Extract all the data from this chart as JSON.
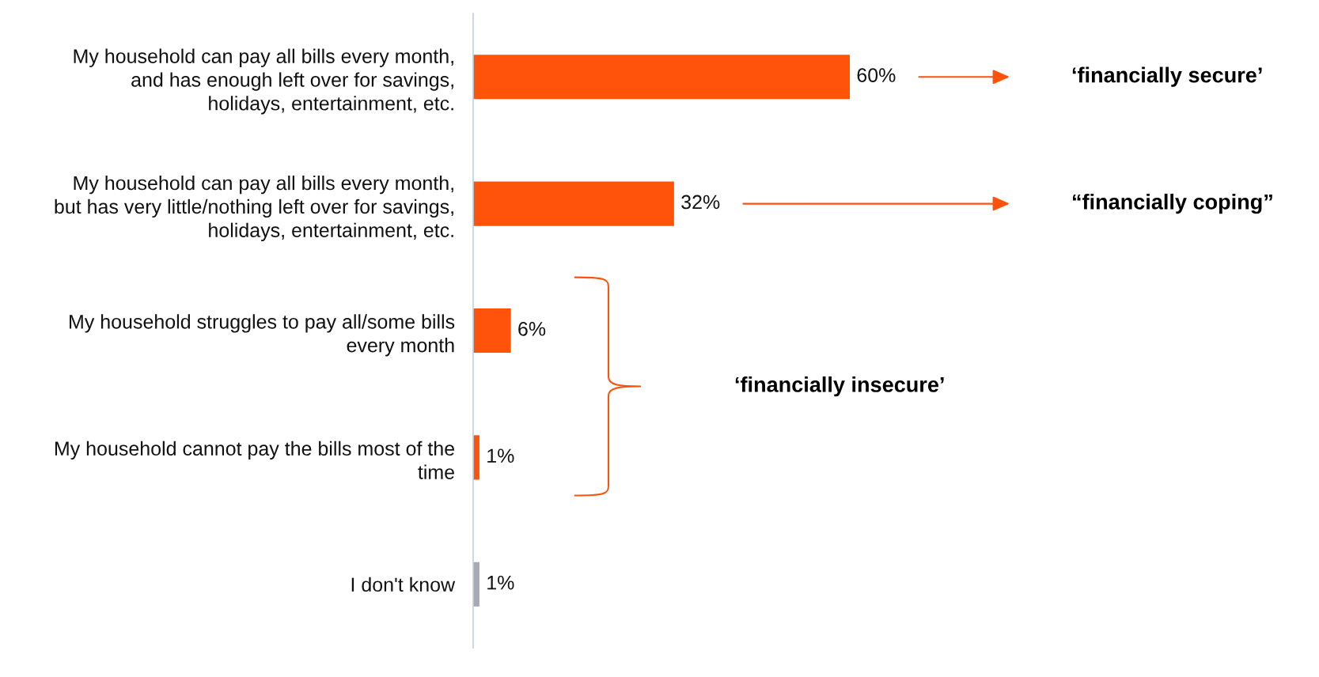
{
  "chart_data": {
    "type": "bar",
    "orientation": "horizontal",
    "categories": [
      "My household can pay all bills every month,\nand has enough left over for savings,\nholidays, entertainment, etc.",
      "My household can pay all bills every month,\nbut has very little/nothing left over for savings,\nholidays, entertainment, etc.",
      "My household struggles to pay all/some bills\nevery month",
      "My household cannot pay the bills most of the\ntime",
      "I don't know"
    ],
    "values": [
      60,
      32,
      6,
      1,
      1
    ],
    "colors": [
      "#ff520a",
      "#ff520a",
      "#ff520a",
      "#ff520a",
      "#a5aab4"
    ],
    "value_labels": [
      "60%",
      "32%",
      "6%",
      "1%",
      "1%"
    ],
    "tick_labels": "y",
    "annotations": [
      "‘financially secure’",
      "“financially coping”",
      "‘financially insecure’"
    ]
  }
}
